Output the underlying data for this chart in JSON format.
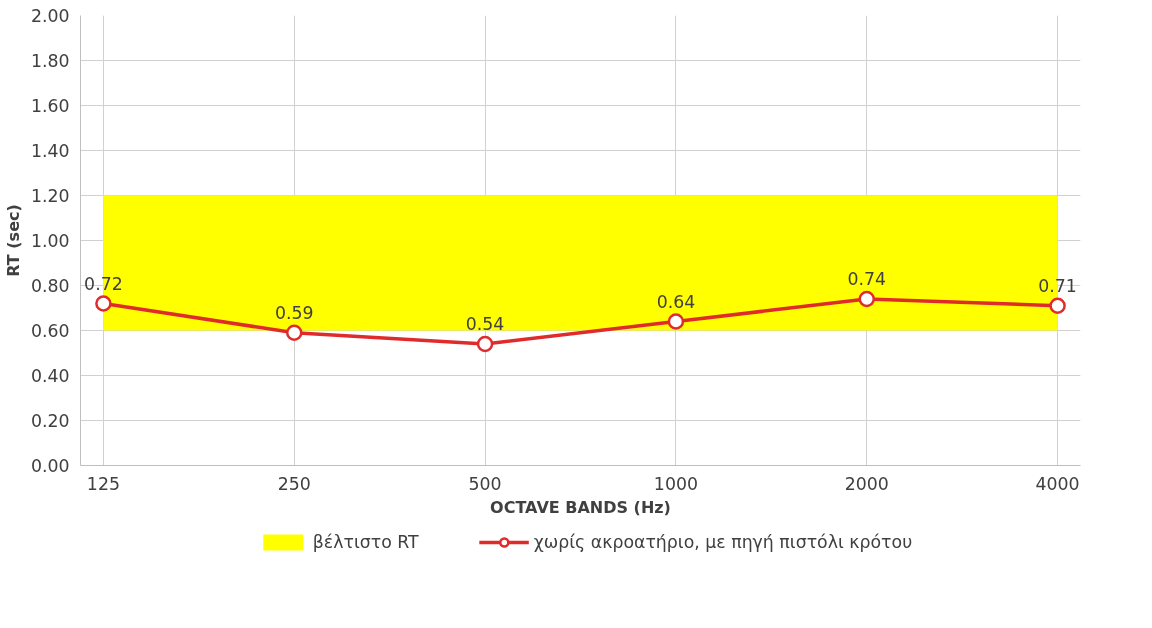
{
  "chart_data": {
    "type": "line",
    "xlabel": "OCTAVE BANDS (Hz)",
    "ylabel": "RT (sec)",
    "categories": [
      "125",
      "250",
      "500",
      "1000",
      "2000",
      "4000"
    ],
    "series": [
      {
        "name": "χωρίς ακροατήριο, με πηγή πιστόλι κρότου",
        "color": "#e02b2b",
        "values": [
          0.72,
          0.59,
          0.54,
          0.64,
          0.74,
          0.71
        ]
      }
    ],
    "ylim": [
      0,
      2
    ],
    "yticks": [
      {
        "value": 0,
        "label": "0.00"
      },
      {
        "value": 0.2,
        "label": "0.20"
      },
      {
        "value": 0.4,
        "label": "0.40"
      },
      {
        "value": 0.6,
        "label": "0.60"
      },
      {
        "value": 0.8,
        "label": "0.80"
      },
      {
        "value": 1,
        "label": "1.00"
      },
      {
        "value": 1.2,
        "label": "1.20"
      },
      {
        "value": 1.4,
        "label": "1.40"
      },
      {
        "value": 1.6,
        "label": "1.60"
      },
      {
        "value": 1.8,
        "label": "1.80"
      },
      {
        "value": 2,
        "label": "2.00"
      }
    ],
    "bands": [
      {
        "axis": "y",
        "from": 0.6,
        "to": 1.2,
        "label": "βέλτιστο RT",
        "color": "#ffff00"
      }
    ],
    "data_labels": true,
    "marker": "circle",
    "line_style": "solid",
    "grid": true,
    "legend": "bottom"
  }
}
